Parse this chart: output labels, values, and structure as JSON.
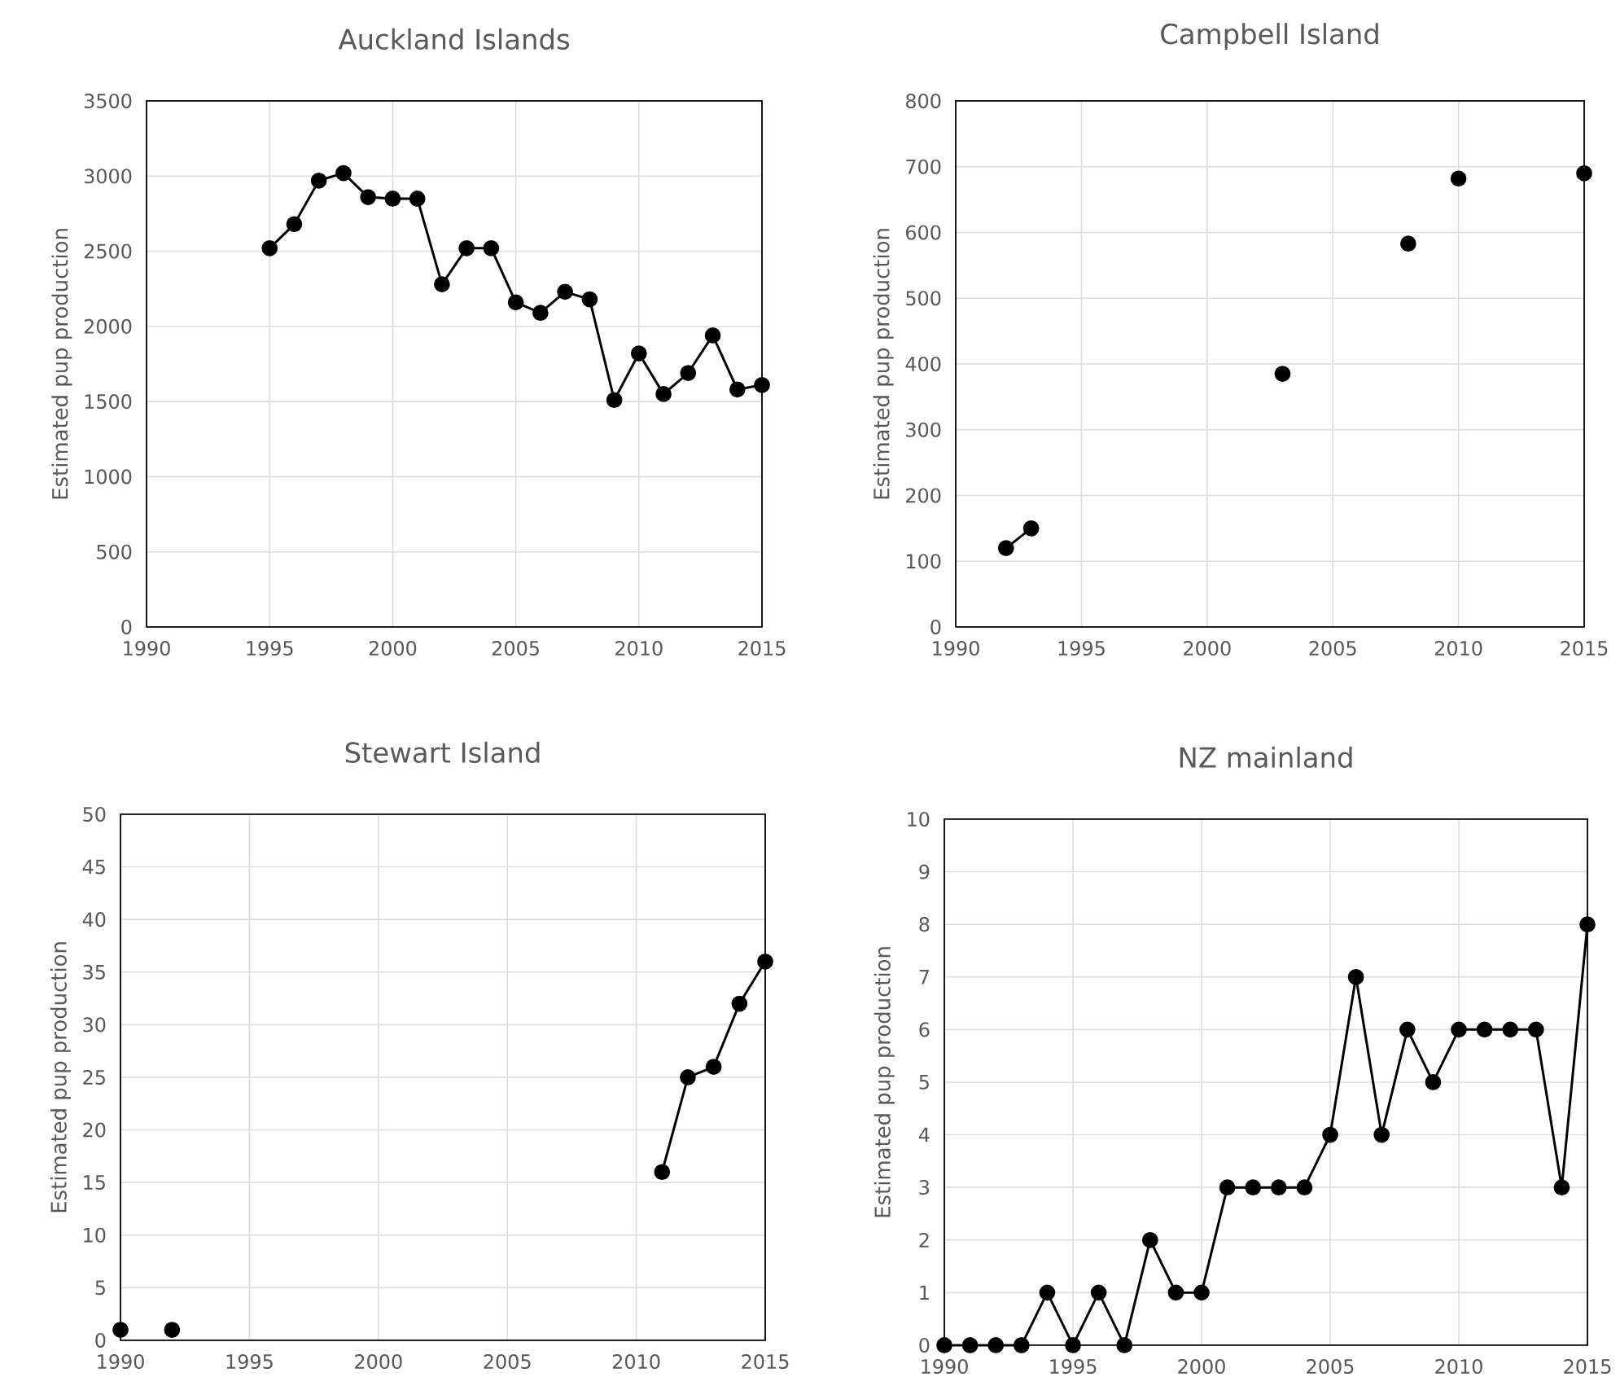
{
  "chart_data": [
    {
      "type": "line",
      "title": "Auckland Islands",
      "ylabel": "Estimated pup production",
      "color": "#000000",
      "marker": "circle",
      "grid": true,
      "x": [
        1995,
        1996,
        1997,
        1998,
        1999,
        2000,
        2001,
        2002,
        2003,
        2004,
        2005,
        2006,
        2007,
        2008,
        2009,
        2010,
        2011,
        2012,
        2013,
        2014,
        2015
      ],
      "values": [
        2520,
        2680,
        2970,
        3020,
        2860,
        2850,
        2850,
        2280,
        2520,
        2520,
        2160,
        2090,
        2230,
        2180,
        1510,
        1820,
        1550,
        1690,
        1940,
        1580,
        1610
      ],
      "xlim": [
        1990,
        2015
      ],
      "ylim": [
        0,
        3500
      ],
      "xticks": [
        1990,
        1995,
        2000,
        2005,
        2010,
        2015
      ],
      "yticks": [
        0,
        500,
        1000,
        1500,
        2000,
        2500,
        3000,
        3500
      ]
    },
    {
      "type": "line",
      "title": "Campbell Island",
      "ylabel": "Estimated pup production",
      "color": "#000000",
      "marker": "circle",
      "grid": true,
      "x": [
        1992,
        1993,
        1994,
        1995,
        1996,
        1997,
        1998,
        1999,
        2000,
        2001,
        2002,
        2003,
        2004,
        2005,
        2006,
        2007,
        2008,
        2009,
        2010,
        2011,
        2012,
        2013,
        2014,
        2015
      ],
      "values": [
        120,
        150,
        null,
        null,
        null,
        null,
        null,
        null,
        null,
        null,
        null,
        385,
        null,
        null,
        null,
        null,
        583,
        null,
        682,
        null,
        null,
        null,
        null,
        690
      ],
      "xlim": [
        1990,
        2015
      ],
      "ylim": [
        0,
        800
      ],
      "xticks": [
        1990,
        1995,
        2000,
        2005,
        2010,
        2015
      ],
      "yticks": [
        0,
        100,
        200,
        300,
        400,
        500,
        600,
        700,
        800
      ]
    },
    {
      "type": "line",
      "title": "Stewart Island",
      "ylabel": "Estimated pup production",
      "color": "#000000",
      "marker": "circle",
      "grid": true,
      "x": [
        1990,
        1991,
        1992,
        1993,
        1994,
        1995,
        1996,
        1997,
        1998,
        1999,
        2000,
        2001,
        2002,
        2003,
        2004,
        2005,
        2006,
        2007,
        2008,
        2009,
        2010,
        2011,
        2012,
        2013,
        2014,
        2015
      ],
      "values": [
        1,
        null,
        1,
        null,
        null,
        null,
        null,
        null,
        null,
        null,
        null,
        null,
        null,
        null,
        null,
        null,
        null,
        null,
        null,
        null,
        null,
        16,
        25,
        26,
        32,
        36
      ],
      "xlim": [
        1990,
        2015
      ],
      "ylim": [
        0,
        50
      ],
      "xticks": [
        1990,
        1995,
        2000,
        2005,
        2010,
        2015
      ],
      "yticks": [
        0,
        5,
        10,
        15,
        20,
        25,
        30,
        35,
        40,
        45,
        50
      ]
    },
    {
      "type": "line",
      "title": "NZ mainland",
      "ylabel": "Estimated pup production",
      "color": "#000000",
      "marker": "circle",
      "grid": true,
      "x": [
        1990,
        1991,
        1992,
        1993,
        1994,
        1995,
        1996,
        1997,
        1998,
        1999,
        2000,
        2001,
        2002,
        2003,
        2004,
        2005,
        2006,
        2007,
        2008,
        2009,
        2010,
        2011,
        2012,
        2013,
        2014,
        2015
      ],
      "values": [
        0,
        0,
        0,
        0,
        1,
        0,
        1,
        0,
        2,
        1,
        1,
        3,
        3,
        3,
        3,
        4,
        7,
        4,
        6,
        5,
        6,
        6,
        6,
        6,
        3,
        8
      ],
      "xlim": [
        1990,
        2015
      ],
      "ylim": [
        0,
        10
      ],
      "xticks": [
        1990,
        1995,
        2000,
        2005,
        2010,
        2015
      ],
      "yticks": [
        0,
        1,
        2,
        3,
        4,
        5,
        6,
        7,
        8,
        9,
        10
      ]
    }
  ]
}
